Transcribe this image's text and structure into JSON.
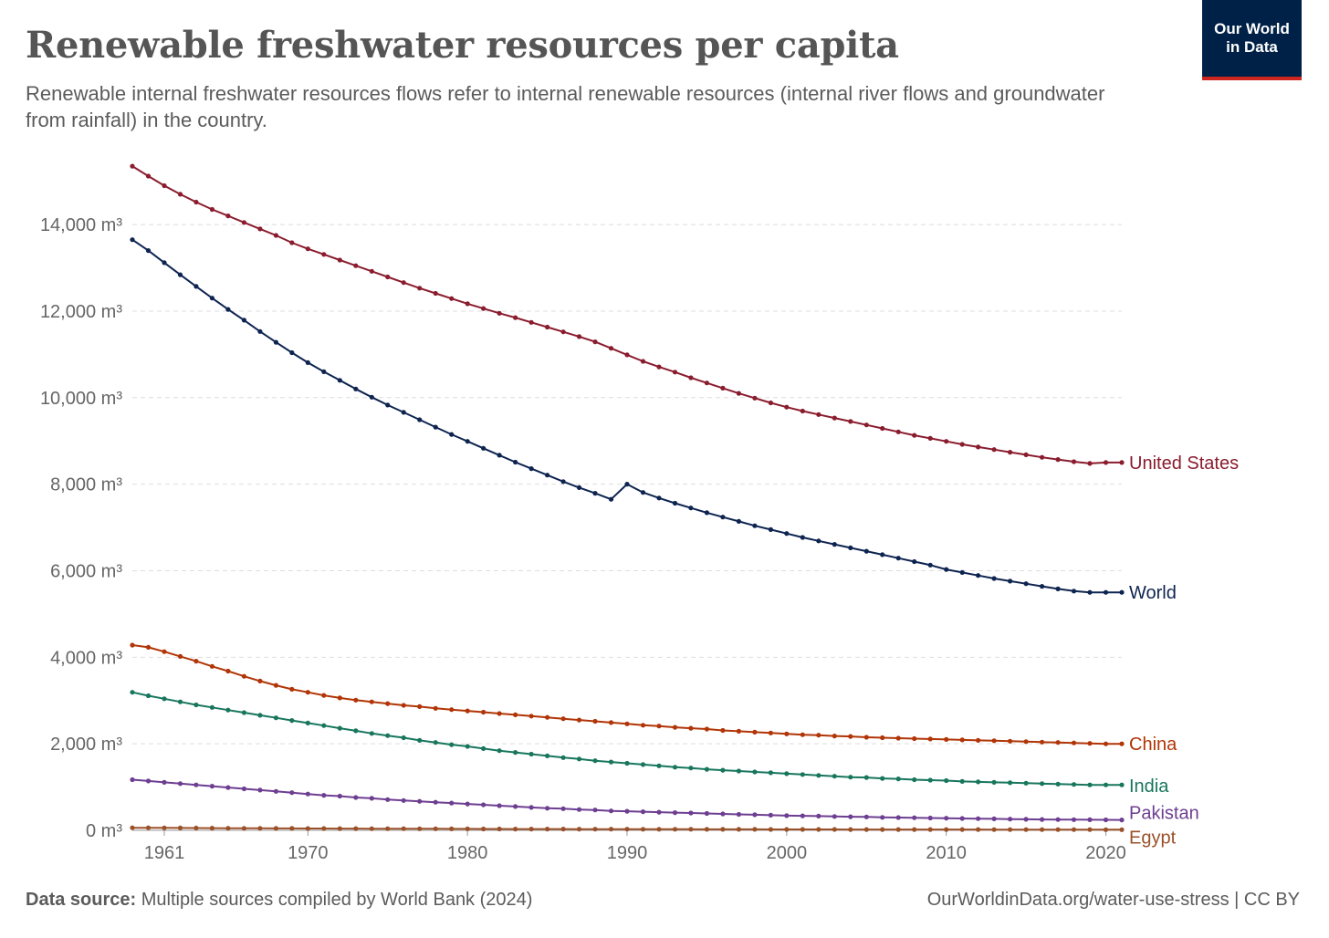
{
  "header": {
    "title": "Renewable freshwater resources per capita",
    "subtitle": "Renewable internal freshwater resources flows refer to internal renewable resources (internal river flows and groundwater from rainfall) in the country."
  },
  "logo": {
    "line1": "Our World",
    "line2": "in Data",
    "bg_color": "#002147",
    "accent_color": "#ce261e"
  },
  "footer": {
    "source_label": "Data source:",
    "source_text": "Multiple sources compiled by World Bank (2024)",
    "credit": "OurWorldinData.org/water-use-stress | CC BY"
  },
  "chart_data": {
    "type": "line",
    "ylim": [
      0,
      15500
    ],
    "xlim": [
      1959,
      2021
    ],
    "y_ticks": [
      0,
      2000,
      4000,
      6000,
      8000,
      10000,
      12000,
      14000
    ],
    "y_tick_labels": [
      "0 m³",
      "2,000 m³",
      "4,000 m³",
      "6,000 m³",
      "8,000 m³",
      "10,000 m³",
      "12,000 m³",
      "14,000 m³"
    ],
    "x_ticks": [
      1961,
      1970,
      1980,
      1990,
      2000,
      2010,
      2020
    ],
    "x_tick_labels": [
      "1961",
      "1970",
      "1980",
      "1990",
      "2000",
      "2010",
      "2020"
    ],
    "grid": "horizontal dashed",
    "legend": "inline labels at right end of lines",
    "series": [
      {
        "name": "United States",
        "color": "#8a1c2e",
        "x_start": 1959,
        "values": [
          15350,
          15120,
          14900,
          14700,
          14520,
          14350,
          14200,
          14050,
          13900,
          13750,
          13580,
          13440,
          13310,
          13180,
          13050,
          12920,
          12790,
          12660,
          12530,
          12410,
          12290,
          12170,
          12060,
          11950,
          11850,
          11740,
          11630,
          11520,
          11410,
          11290,
          11140,
          10990,
          10840,
          10710,
          10590,
          10460,
          10340,
          10220,
          10100,
          9990,
          9880,
          9780,
          9690,
          9610,
          9530,
          9450,
          9370,
          9290,
          9210,
          9130,
          9060,
          8990,
          8920,
          8860,
          8800,
          8740,
          8680,
          8620,
          8570,
          8520,
          8480,
          8500,
          8500
        ]
      },
      {
        "name": "World",
        "color": "#0e2450",
        "x_start": 1959,
        "values": [
          13650,
          13400,
          13120,
          12840,
          12570,
          12300,
          12040,
          11790,
          11530,
          11280,
          11040,
          10810,
          10600,
          10400,
          10200,
          10010,
          9830,
          9660,
          9490,
          9320,
          9150,
          8990,
          8830,
          8670,
          8510,
          8360,
          8210,
          8060,
          7920,
          7790,
          7650,
          8000,
          7810,
          7680,
          7560,
          7450,
          7340,
          7240,
          7140,
          7040,
          6950,
          6860,
          6770,
          6690,
          6610,
          6530,
          6450,
          6370,
          6290,
          6210,
          6130,
          6030,
          5960,
          5890,
          5820,
          5760,
          5700,
          5640,
          5580,
          5530,
          5500,
          5500,
          5500
        ]
      },
      {
        "name": "China",
        "color": "#b13507",
        "x_start": 1959,
        "values": [
          4280,
          4230,
          4130,
          4020,
          3910,
          3790,
          3680,
          3560,
          3450,
          3350,
          3260,
          3190,
          3120,
          3060,
          3010,
          2970,
          2930,
          2890,
          2860,
          2820,
          2790,
          2760,
          2730,
          2700,
          2670,
          2640,
          2610,
          2580,
          2550,
          2520,
          2490,
          2460,
          2430,
          2410,
          2380,
          2360,
          2340,
          2310,
          2290,
          2270,
          2250,
          2230,
          2210,
          2200,
          2180,
          2170,
          2150,
          2140,
          2130,
          2120,
          2110,
          2100,
          2090,
          2080,
          2070,
          2060,
          2050,
          2040,
          2030,
          2020,
          2010,
          2000,
          2000
        ]
      },
      {
        "name": "India",
        "color": "#18765d",
        "x_start": 1959,
        "values": [
          3190,
          3110,
          3040,
          2970,
          2900,
          2840,
          2780,
          2720,
          2660,
          2600,
          2540,
          2480,
          2420,
          2360,
          2300,
          2240,
          2190,
          2140,
          2080,
          2030,
          1980,
          1940,
          1890,
          1840,
          1800,
          1760,
          1720,
          1680,
          1650,
          1610,
          1580,
          1550,
          1520,
          1490,
          1460,
          1440,
          1410,
          1390,
          1370,
          1350,
          1330,
          1310,
          1290,
          1270,
          1250,
          1230,
          1220,
          1200,
          1190,
          1170,
          1160,
          1150,
          1130,
          1120,
          1110,
          1100,
          1090,
          1080,
          1070,
          1060,
          1050,
          1050,
          1050
        ]
      },
      {
        "name": "Pakistan",
        "color": "#6d3e91",
        "x_start": 1959,
        "values": [
          1170,
          1140,
          1110,
          1080,
          1050,
          1020,
          990,
          960,
          930,
          900,
          870,
          840,
          810,
          790,
          760,
          740,
          710,
          690,
          670,
          650,
          630,
          610,
          590,
          570,
          550,
          530,
          510,
          500,
          480,
          470,
          450,
          440,
          430,
          420,
          410,
          400,
          390,
          380,
          370,
          360,
          350,
          340,
          335,
          330,
          320,
          315,
          310,
          300,
          295,
          290,
          285,
          280,
          275,
          270,
          265,
          260,
          255,
          250,
          248,
          246,
          244,
          242,
          240
        ]
      },
      {
        "name": "Egypt",
        "color": "#9a5129",
        "x_start": 1959,
        "values": [
          60,
          58,
          56,
          54,
          52,
          50,
          48,
          47,
          46,
          45,
          44,
          43,
          42,
          41,
          40,
          39,
          38,
          37,
          36,
          35,
          34,
          33,
          32,
          31,
          30,
          30,
          29,
          29,
          28,
          28,
          27,
          27,
          26,
          26,
          25,
          25,
          24,
          24,
          23,
          23,
          22,
          22,
          21,
          21,
          21,
          20,
          20,
          20,
          19,
          19,
          19,
          18,
          18,
          18,
          17,
          17,
          17,
          16,
          16,
          16,
          16,
          15,
          15
        ]
      }
    ]
  }
}
